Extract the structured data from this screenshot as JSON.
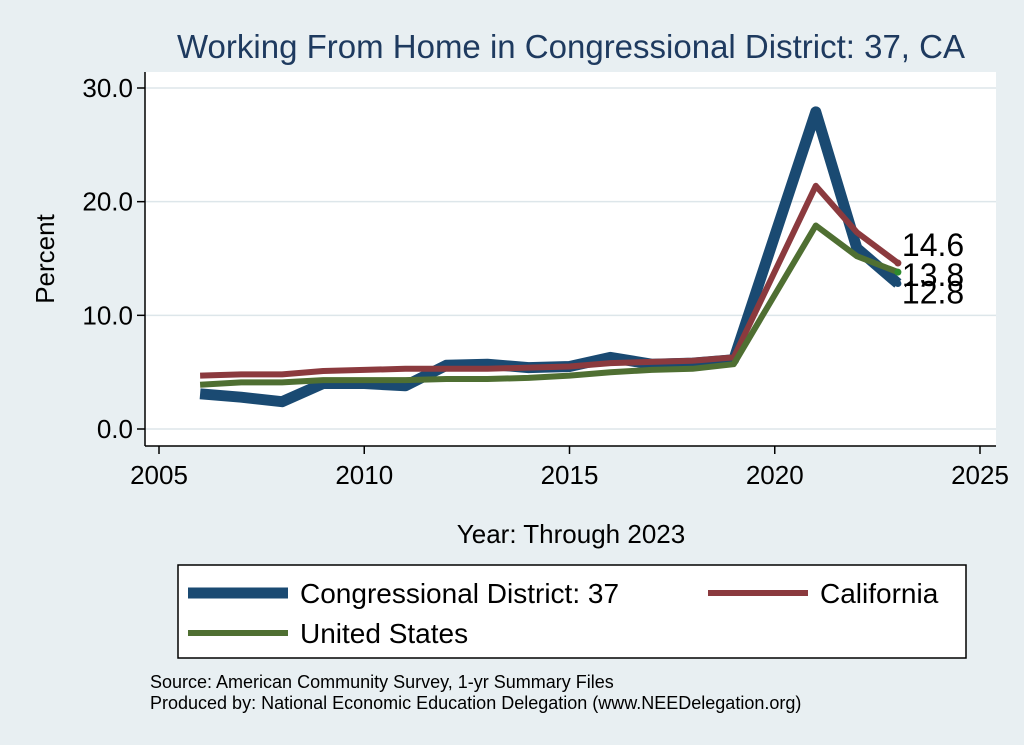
{
  "chart_data": {
    "type": "line",
    "title": "Working From Home in Congressional District: 37, CA",
    "xlabel": "Year: Through 2023",
    "ylabel": "Percent",
    "xlim": [
      2005,
      2025
    ],
    "ylim": [
      0,
      30
    ],
    "xticks": [
      2005,
      2010,
      2015,
      2020,
      2025
    ],
    "yticks": [
      0,
      10,
      20,
      30
    ],
    "ytick_labels": [
      "0.0",
      "10.0",
      "20.0",
      "30.0"
    ],
    "grid": true,
    "legend_position": "bottom",
    "series": [
      {
        "name": "Congressional District: 37",
        "color": "#1a4a72",
        "x": [
          2006,
          2007,
          2008,
          2009,
          2010,
          2011,
          2012,
          2013,
          2014,
          2015,
          2016,
          2017,
          2018,
          2019,
          2021,
          2022,
          2023
        ],
        "y": [
          3.1,
          2.8,
          2.4,
          4.0,
          4.0,
          3.8,
          5.6,
          5.7,
          5.4,
          5.5,
          6.3,
          5.7,
          5.8,
          6.1,
          27.9,
          15.9,
          12.8
        ],
        "end_label": "12.8"
      },
      {
        "name": "California",
        "color": "#8b3a3e",
        "x": [
          2006,
          2007,
          2008,
          2009,
          2010,
          2011,
          2012,
          2013,
          2014,
          2015,
          2016,
          2017,
          2018,
          2019,
          2021,
          2022,
          2023
        ],
        "y": [
          4.7,
          4.8,
          4.8,
          5.1,
          5.2,
          5.3,
          5.3,
          5.3,
          5.4,
          5.5,
          5.8,
          5.9,
          6.0,
          6.3,
          21.4,
          17.3,
          14.6
        ],
        "end_label": "14.6"
      },
      {
        "name": "United States",
        "color": "#4f6f32",
        "x": [
          2006,
          2007,
          2008,
          2009,
          2010,
          2011,
          2012,
          2013,
          2014,
          2015,
          2016,
          2017,
          2018,
          2019,
          2021,
          2022,
          2023
        ],
        "y": [
          3.9,
          4.1,
          4.1,
          4.3,
          4.3,
          4.3,
          4.4,
          4.4,
          4.5,
          4.7,
          5.0,
          5.2,
          5.3,
          5.7,
          17.9,
          15.2,
          13.8
        ],
        "end_label": "13.8"
      }
    ],
    "notes": [
      "Source: American Community Survey, 1-yr Summary Files",
      "Produced by: National Economic Education Delegation (www.NEEDelegation.org)"
    ]
  }
}
